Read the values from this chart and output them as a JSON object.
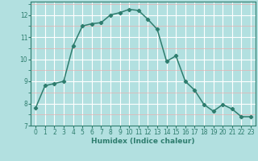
{
  "x": [
    0,
    1,
    2,
    3,
    4,
    5,
    6,
    7,
    8,
    9,
    10,
    11,
    12,
    13,
    14,
    15,
    16,
    17,
    18,
    19,
    20,
    21,
    22,
    23
  ],
  "y": [
    7.8,
    8.8,
    8.9,
    9.0,
    10.6,
    11.5,
    11.6,
    11.65,
    12.0,
    12.1,
    12.25,
    12.2,
    11.8,
    11.35,
    9.9,
    10.15,
    9.0,
    8.6,
    7.95,
    7.65,
    7.95,
    7.75,
    7.4,
    7.4
  ],
  "line_color": "#2e7d6e",
  "bg_color": "#b2e0e0",
  "grid_major_color": "#ffffff",
  "grid_minor_color": "#e8b0b0",
  "xlabel": "Humidex (Indice chaleur)",
  "xlim": [
    -0.5,
    23.5
  ],
  "ylim": [
    7,
    12.6
  ],
  "yticks": [
    7,
    8,
    9,
    10,
    11,
    12
  ],
  "xticks": [
    0,
    1,
    2,
    3,
    4,
    5,
    6,
    7,
    8,
    9,
    10,
    11,
    12,
    13,
    14,
    15,
    16,
    17,
    18,
    19,
    20,
    21,
    22,
    23
  ],
  "marker": "D",
  "markersize": 2.2,
  "linewidth": 1.1,
  "tick_fontsize": 5.5,
  "xlabel_fontsize": 6.5
}
